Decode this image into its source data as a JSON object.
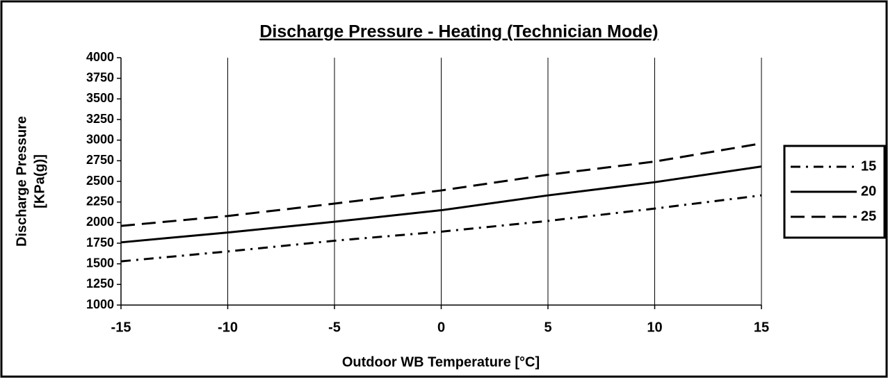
{
  "chart_data": {
    "type": "line",
    "title": "Discharge Pressure - Heating (Technician Mode)",
    "xlabel": "Outdoor WB Temperature [°C]",
    "ylabel": [
      "Discharge Pressure",
      "[KPa(g)]"
    ],
    "x": [
      -15,
      -10,
      -5,
      0,
      5,
      10,
      15
    ],
    "series": [
      {
        "name": "15",
        "color": "#000000",
        "dash": "dash-dot",
        "values": [
          1530,
          1650,
          1780,
          1890,
          2020,
          2170,
          2330
        ]
      },
      {
        "name": "20",
        "color": "#000000",
        "dash": "solid",
        "values": [
          1760,
          1880,
          2010,
          2150,
          2330,
          2490,
          2680
        ]
      },
      {
        "name": "25",
        "color": "#000000",
        "dash": "dash",
        "values": [
          1960,
          2080,
          2230,
          2390,
          2580,
          2740,
          2960
        ]
      }
    ],
    "xlim": [
      -15,
      15
    ],
    "xticks": [
      -15,
      -10,
      -5,
      0,
      5,
      10,
      15
    ],
    "ylim": [
      1000,
      4000
    ],
    "yticks": [
      1000,
      1250,
      1500,
      1750,
      2000,
      2250,
      2500,
      2750,
      3000,
      3250,
      3500,
      3750,
      4000
    ],
    "grid": "x",
    "legend": "right"
  }
}
